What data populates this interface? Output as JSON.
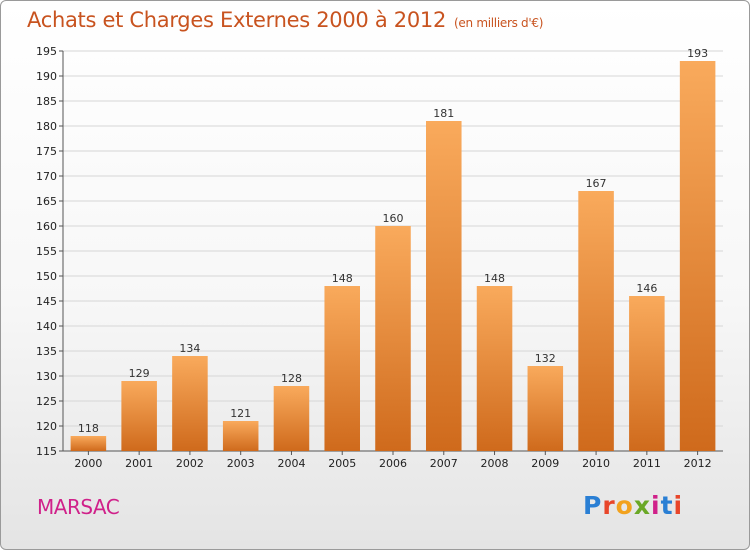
{
  "header": {
    "title": "Achats et Charges Externes 2000 à 2012",
    "unit": "(en milliers d'€)"
  },
  "footer": {
    "city": "MARSAC"
  },
  "logo": {
    "text": "Proxiti",
    "letter_colors": [
      "#2a7fd4",
      "#e8462a",
      "#f2a21e",
      "#6aa826",
      "#d0218a",
      "#2a7fd4",
      "#e8462a"
    ]
  },
  "colors": {
    "bar_light": "#f9aa5c",
    "bar_dark": "#cf6a1c",
    "title": "#c8531f",
    "city": "#d0218a",
    "grid": "#d6d6d6"
  },
  "chart_data": {
    "type": "bar",
    "title": "Achats et Charges Externes 2000 à 2012",
    "subtitle": "(en milliers d'€)",
    "xlabel": "",
    "ylabel": "",
    "categories": [
      "2000",
      "2001",
      "2002",
      "2003",
      "2004",
      "2005",
      "2006",
      "2007",
      "2008",
      "2009",
      "2010",
      "2011",
      "2012"
    ],
    "values": [
      118,
      129,
      134,
      121,
      128,
      148,
      160,
      181,
      148,
      132,
      167,
      146,
      193
    ],
    "ylim": [
      115,
      195
    ],
    "yticks": [
      115,
      120,
      125,
      130,
      135,
      140,
      145,
      150,
      155,
      160,
      165,
      170,
      175,
      180,
      185,
      190,
      195
    ],
    "grid": true,
    "legend": "none"
  }
}
